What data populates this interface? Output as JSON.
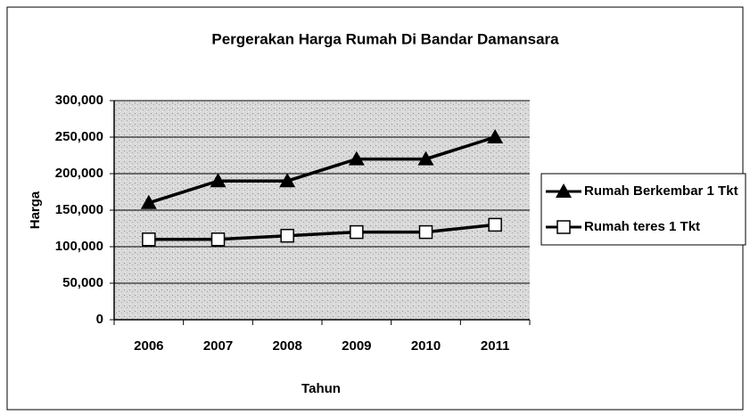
{
  "chart_data": {
    "type": "line",
    "title": "Pergerakan Harga Rumah Di Bandar Damansara",
    "x_label": "Tahun",
    "y_label": "Harga",
    "categories": [
      "2006",
      "2007",
      "2008",
      "2009",
      "2010",
      "2011"
    ],
    "series": [
      {
        "name": "Rumah Berkembar 1 Tkt",
        "color": "#000000",
        "marker": "triangle",
        "values": [
          160000,
          190000,
          190000,
          220000,
          220000,
          250000
        ]
      },
      {
        "name": "Rumah teres 1 Tkt",
        "color": "#000000",
        "marker": "square",
        "values": [
          110000,
          110000,
          115000,
          120000,
          120000,
          130000
        ]
      }
    ],
    "ylim": [
      0,
      300000
    ],
    "yticks": [
      0,
      {
        "value": 50000,
        "label": "50,000"
      },
      {
        "value": 100000,
        "label": "100,000"
      },
      {
        "value": 150000,
        "label": "150,000"
      },
      {
        "value": 200000,
        "label": "200,000"
      },
      {
        "value": 250000,
        "label": "250,000"
      },
      {
        "value": 300000,
        "label": "300,000"
      }
    ],
    "grid": true,
    "legend": "right"
  }
}
